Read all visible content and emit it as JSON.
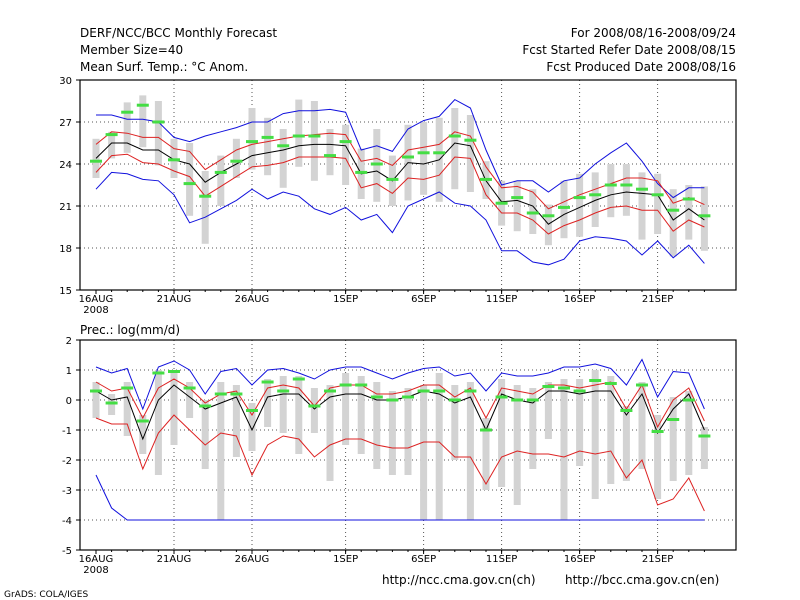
{
  "header": {
    "title": "DERF/NCC/BCC Monthly Forecast",
    "member_size": "Member Size=40",
    "variable": "Mean Surf. Temp.: °C Anom.",
    "forecast_period": "For 2008/08/16-2008/09/24",
    "started_date": "Fcst Started Refer Date 2008/08/15",
    "produced_date": "Fcst Produced Date 2008/08/16"
  },
  "footer": {
    "url_ch": "http://ncc.cma.gov.cn(ch)",
    "url_en": "http://bcc.cma.gov.cn(en)",
    "credit": "GrADS: COLA/IGES"
  },
  "colors": {
    "box": "#d3d3d3",
    "median": "#44dd44",
    "mean": "#000000",
    "spread": "#dd2222",
    "extreme": "#1111dd",
    "grid": "#555555"
  },
  "chart_data": [
    {
      "type": "line",
      "title": "Mean Surf. Temp.: °C Anom.",
      "ylabel": "",
      "ylim": [
        15,
        30
      ],
      "yticks": [
        "30",
        "27",
        "24",
        "21",
        "18",
        "15"
      ],
      "xlabel": "",
      "x": [
        1,
        2,
        3,
        4,
        5,
        6,
        7,
        8,
        9,
        10,
        11,
        12,
        13,
        14,
        15,
        16,
        17,
        18,
        19,
        20,
        21,
        22,
        23,
        24,
        25,
        26,
        27,
        28,
        29,
        30,
        31,
        32,
        33,
        34,
        35,
        36,
        37,
        38,
        39,
        40
      ],
      "xtick_labels": [
        {
          "x": 1,
          "label": "16AUG",
          "sublabel": "2008"
        },
        {
          "x": 6,
          "label": "21AUG"
        },
        {
          "x": 11,
          "label": "26AUG"
        },
        {
          "x": 17,
          "label": "1SEP"
        },
        {
          "x": 22,
          "label": "6SEP"
        },
        {
          "x": 27,
          "label": "11SEP"
        },
        {
          "x": 32,
          "label": "16SEP"
        },
        {
          "x": 37,
          "label": "21SEP"
        }
      ],
      "series": [
        {
          "name": "max",
          "values": [
            22.2,
            23.4,
            23.3,
            22.9,
            22.8,
            21.8,
            19.8,
            20.2,
            20.8,
            21.4,
            22.2,
            21.5,
            22.0,
            21.7,
            20.8,
            20.4,
            20.9,
            20.0,
            20.4,
            19.1,
            21.0,
            21.5,
            22.0,
            21.2,
            21.0,
            20.0,
            17.8,
            17.8,
            17.0,
            16.8,
            17.2,
            18.5,
            18.8,
            18.7,
            18.5,
            17.5,
            18.5,
            17.3,
            18.2,
            16.9
          ]
        },
        {
          "name": "min",
          "values": [
            27.5,
            27.5,
            27.2,
            27.2,
            27.0,
            25.9,
            25.6,
            26.0,
            26.3,
            26.6,
            27.0,
            27.0,
            27.6,
            27.8,
            27.8,
            27.9,
            27.7,
            25.0,
            25.3,
            24.9,
            26.5,
            27.1,
            27.4,
            28.6,
            28.0,
            25.0,
            22.5,
            22.8,
            22.8,
            22.0,
            22.8,
            23.0,
            24.0,
            24.8,
            25.5,
            24.2,
            22.6,
            21.6,
            22.3,
            22.3
          ]
        },
        {
          "name": "mean_plus_sd",
          "values": [
            25.4,
            26.3,
            26.2,
            25.9,
            25.9,
            25.1,
            24.9,
            23.6,
            24.3,
            25.0,
            25.4,
            25.6,
            25.8,
            26.0,
            26.1,
            26.2,
            26.1,
            24.2,
            24.4,
            23.9,
            25.0,
            25.2,
            25.4,
            26.3,
            26.0,
            23.8,
            22.3,
            22.4,
            22.0,
            20.8,
            21.3,
            21.8,
            22.2,
            22.6,
            23.0,
            23.0,
            22.8,
            21.2,
            21.6,
            21.1
          ]
        },
        {
          "name": "mean",
          "values": [
            24.4,
            25.5,
            25.5,
            25.0,
            25.0,
            24.3,
            24.0,
            22.7,
            23.4,
            24.0,
            24.6,
            24.8,
            25.0,
            25.3,
            25.4,
            25.4,
            25.3,
            23.3,
            23.5,
            22.8,
            24.1,
            24.0,
            24.3,
            25.5,
            25.3,
            22.8,
            21.3,
            21.4,
            21.0,
            19.7,
            20.4,
            20.9,
            21.4,
            21.8,
            22.0,
            21.9,
            21.8,
            20.0,
            20.8,
            20.0
          ]
        },
        {
          "name": "mean_minus_sd",
          "values": [
            23.4,
            24.6,
            24.7,
            24.1,
            24.0,
            23.5,
            23.1,
            21.7,
            22.4,
            23.1,
            23.8,
            23.9,
            24.1,
            24.5,
            24.5,
            24.5,
            24.4,
            22.3,
            22.6,
            21.9,
            23.0,
            22.9,
            23.2,
            24.5,
            24.4,
            21.8,
            20.5,
            20.5,
            20.0,
            19.0,
            19.6,
            20.0,
            20.5,
            20.9,
            21.0,
            20.7,
            20.7,
            19.2,
            20.0,
            19.5
          ]
        },
        {
          "name": "median",
          "values": [
            24.2,
            26.1,
            27.7,
            28.2,
            27.0,
            24.3,
            22.6,
            21.7,
            23.4,
            24.2,
            25.6,
            25.9,
            25.3,
            26.0,
            26.0,
            24.6,
            25.6,
            23.4,
            24.0,
            22.9,
            24.5,
            24.8,
            24.8,
            26.0,
            25.7,
            22.9,
            21.2,
            21.6,
            20.5,
            20.3,
            20.9,
            21.6,
            21.8,
            22.5,
            22.5,
            22.2,
            21.8,
            20.7,
            21.5,
            20.3
          ]
        },
        {
          "name": "p75",
          "values": [
            25.8,
            26.3,
            28.4,
            28.9,
            28.5,
            25.8,
            25.5,
            23.5,
            24.6,
            25.8,
            28.0,
            27.3,
            26.5,
            28.6,
            28.5,
            26.5,
            26.8,
            25.1,
            26.5,
            24.6,
            26.8,
            27.0,
            27.3,
            28.0,
            27.5,
            24.2,
            22.8,
            22.8,
            22.2,
            21.1,
            22.8,
            23.3,
            23.4,
            24.0,
            24.0,
            23.4,
            23.3,
            22.2,
            22.5,
            22.4
          ]
        },
        {
          "name": "p25",
          "values": [
            23.0,
            24.4,
            24.8,
            25.2,
            23.9,
            23.0,
            20.3,
            18.3,
            21.0,
            23.0,
            23.6,
            23.2,
            22.3,
            23.8,
            22.8,
            23.2,
            22.5,
            21.5,
            21.3,
            21.0,
            21.4,
            21.8,
            21.3,
            22.2,
            22.0,
            21.5,
            19.6,
            19.2,
            19.0,
            18.2,
            18.7,
            18.8,
            19.5,
            20.2,
            20.3,
            18.6,
            19.0,
            17.4,
            18.6,
            17.8
          ]
        }
      ]
    },
    {
      "type": "line",
      "title": "Prec.: log(mm/d)",
      "ylabel": "",
      "ylim": [
        -5,
        2
      ],
      "yticks": [
        "2",
        "1",
        "0",
        "-1",
        "-2",
        "-3",
        "-4",
        "-5"
      ],
      "xlabel": "",
      "x": [
        1,
        2,
        3,
        4,
        5,
        6,
        7,
        8,
        9,
        10,
        11,
        12,
        13,
        14,
        15,
        16,
        17,
        18,
        19,
        20,
        21,
        22,
        23,
        24,
        25,
        26,
        27,
        28,
        29,
        30,
        31,
        32,
        33,
        34,
        35,
        36,
        37,
        38,
        39,
        40
      ],
      "xtick_labels": [
        {
          "x": 1,
          "label": "16AUG",
          "sublabel": "2008"
        },
        {
          "x": 6,
          "label": "21AUG"
        },
        {
          "x": 11,
          "label": "26AUG"
        },
        {
          "x": 17,
          "label": "1SEP"
        },
        {
          "x": 22,
          "label": "6SEP"
        },
        {
          "x": 27,
          "label": "11SEP"
        },
        {
          "x": 32,
          "label": "16SEP"
        },
        {
          "x": 37,
          "label": "21SEP"
        }
      ],
      "series": [
        {
          "name": "max",
          "values": [
            1.1,
            0.9,
            1.05,
            -0.3,
            1.1,
            1.3,
            1.0,
            0.2,
            0.95,
            1.05,
            0.5,
            1.0,
            1.05,
            0.9,
            0.7,
            1.0,
            1.1,
            1.1,
            0.9,
            0.7,
            0.9,
            1.05,
            1.1,
            0.8,
            0.9,
            0.3,
            0.9,
            0.8,
            0.8,
            0.9,
            1.1,
            1.1,
            1.2,
            1.05,
            0.5,
            1.35,
            0.1,
            0.95,
            0.9,
            -0.3
          ]
        },
        {
          "name": "min",
          "values": [
            -2.5,
            -3.6,
            -4.0,
            -4.0,
            -4.0,
            -4.0,
            -4.0,
            -4.0,
            -4.0,
            -4.0,
            -4.0,
            -4.0,
            -4.0,
            -4.0,
            -4.0,
            -4.0,
            -4.0,
            -4.0,
            -4.0,
            -4.0,
            -4.0,
            -4.0,
            -4.0,
            -4.0,
            -4.0,
            -4.0,
            -4.0,
            -4.0,
            -4.0,
            -4.0,
            -4.0,
            -4.0,
            -4.0,
            -4.0,
            -4.0,
            -4.0,
            -4.0,
            -4.0,
            -4.0,
            -4.0
          ]
        },
        {
          "name": "mean_plus_sd",
          "values": [
            0.6,
            0.3,
            0.4,
            -0.6,
            0.4,
            0.7,
            0.4,
            -0.1,
            0.2,
            0.3,
            -0.5,
            0.4,
            0.5,
            0.4,
            -0.2,
            0.4,
            0.5,
            0.5,
            0.2,
            0.2,
            0.3,
            0.5,
            0.5,
            0.1,
            0.4,
            -0.6,
            0.4,
            0.3,
            0.2,
            0.5,
            0.5,
            0.4,
            0.5,
            0.6,
            -0.3,
            0.5,
            -0.9,
            0.0,
            0.4,
            -0.7
          ]
        },
        {
          "name": "mean",
          "values": [
            0.3,
            0.0,
            0.1,
            -1.3,
            0.0,
            0.5,
            0.1,
            -0.3,
            -0.1,
            0.1,
            -1.0,
            0.1,
            0.2,
            0.2,
            -0.3,
            0.1,
            0.2,
            0.2,
            0.0,
            0.0,
            0.1,
            0.3,
            0.2,
            -0.1,
            0.1,
            -1.0,
            0.2,
            0.0,
            -0.1,
            0.3,
            0.3,
            0.2,
            0.3,
            0.3,
            -0.5,
            0.2,
            -1.1,
            -0.3,
            0.2,
            -1.0
          ]
        },
        {
          "name": "mean_minus_sd",
          "values": [
            -0.6,
            -0.8,
            -0.8,
            -2.3,
            -1.1,
            -0.5,
            -1.0,
            -1.5,
            -1.1,
            -1.2,
            -2.5,
            -1.5,
            -1.2,
            -1.3,
            -1.9,
            -1.5,
            -1.3,
            -1.3,
            -1.5,
            -1.6,
            -1.6,
            -1.4,
            -1.4,
            -1.9,
            -1.9,
            -2.8,
            -1.9,
            -1.7,
            -1.8,
            -1.8,
            -1.9,
            -1.7,
            -1.8,
            -1.7,
            -2.6,
            -2.0,
            -3.5,
            -3.3,
            -2.6,
            -3.7
          ]
        },
        {
          "name": "median",
          "values": [
            0.3,
            -0.1,
            0.4,
            -0.7,
            0.9,
            0.95,
            0.4,
            -0.2,
            0.2,
            0.2,
            -0.35,
            0.6,
            0.3,
            0.7,
            -0.2,
            0.3,
            0.5,
            0.5,
            0.1,
            0.0,
            0.1,
            0.3,
            0.3,
            0.0,
            0.3,
            -1.0,
            0.1,
            0.0,
            0.0,
            0.45,
            0.4,
            0.3,
            0.65,
            0.55,
            -0.35,
            0.5,
            -1.05,
            -0.65,
            0.0,
            -1.2
          ]
        },
        {
          "name": "p75",
          "values": [
            0.6,
            0.2,
            0.6,
            -0.5,
            1.0,
            1.0,
            0.6,
            0.0,
            0.6,
            0.5,
            -0.1,
            0.7,
            0.8,
            0.8,
            0.4,
            0.5,
            0.9,
            0.8,
            0.6,
            0.3,
            0.4,
            0.5,
            0.9,
            0.5,
            0.6,
            -0.6,
            0.7,
            0.5,
            0.4,
            0.6,
            0.7,
            0.7,
            1.0,
            0.8,
            -0.2,
            0.6,
            -0.5,
            0.1,
            0.3,
            -0.9
          ]
        },
        {
          "name": "p25",
          "values": [
            -0.6,
            -0.5,
            -1.2,
            -1.8,
            -2.5,
            -1.5,
            -0.6,
            -2.3,
            -4.0,
            -1.9,
            -1.7,
            -0.9,
            -1.1,
            -1.8,
            -1.1,
            -2.7,
            -1.5,
            -1.8,
            -2.3,
            -2.5,
            -2.5,
            -4.0,
            -4.0,
            -2.0,
            -4.0,
            -3.0,
            -2.9,
            -3.5,
            -2.3,
            -1.3,
            -4.0,
            -2.2,
            -3.3,
            -2.8,
            -2.7,
            -2.3,
            -3.3,
            -2.7,
            -2.5,
            -2.3
          ]
        }
      ]
    }
  ]
}
